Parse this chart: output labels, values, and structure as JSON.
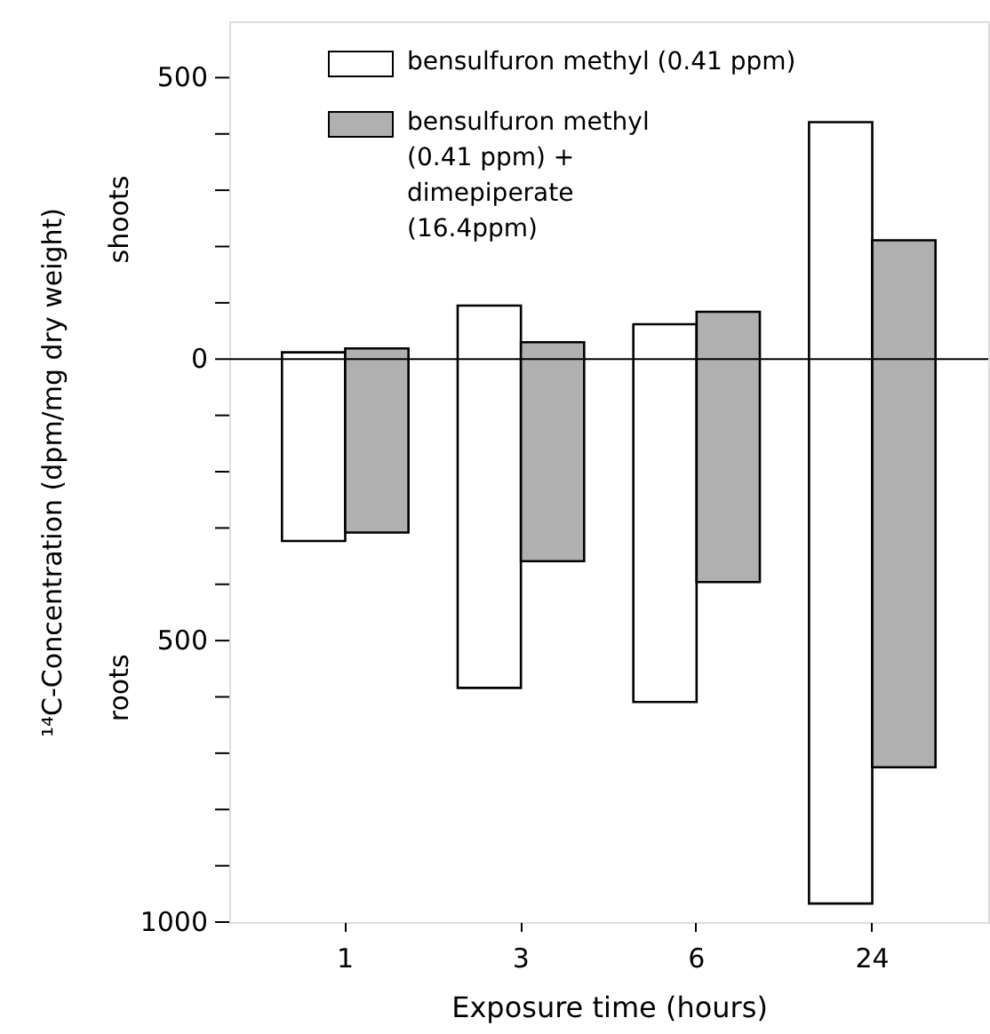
{
  "chart_data": {
    "type": "bar",
    "categories": [
      "1",
      "3",
      "6",
      "24"
    ],
    "series": [
      {
        "name": "bensulfuron methyl (0.41 ppm)",
        "color": "#ffffff",
        "base": [
          -323,
          -584,
          -609,
          -967
        ],
        "values": [
          335,
          679,
          671,
          1388
        ]
      },
      {
        "name": "bensulfuron methyl (0.41 ppm) + dimepiperate (16.4ppm)",
        "color": "#b0b0b0",
        "base": [
          -308,
          -359,
          -396,
          -725
        ],
        "values": [
          327,
          389,
          480,
          936
        ]
      }
    ],
    "xlabel": "Exposure time (hours)",
    "ylabel": "¹⁴C-Concentration (dpm/mg dry weight)",
    "annotations": [
      "shoots",
      "roots"
    ],
    "ylim": [
      -1000,
      600
    ],
    "yticks": [
      {
        "value": 500,
        "label": "500"
      },
      {
        "value": 400,
        "label": null
      },
      {
        "value": 300,
        "label": null
      },
      {
        "value": 200,
        "label": null
      },
      {
        "value": 100,
        "label": null
      },
      0,
      {
        "value": -100,
        "label": null
      },
      {
        "value": -200,
        "label": null
      },
      {
        "value": -300,
        "label": null
      },
      {
        "value": -400,
        "label": null
      },
      {
        "value": -500,
        "label": "500"
      },
      {
        "value": -600,
        "label": null
      },
      {
        "value": -700,
        "label": null
      },
      {
        "value": -800,
        "label": null
      },
      {
        "value": -900,
        "label": null
      },
      {
        "value": -1000,
        "label": "1000"
      }
    ],
    "ref_lines": [
      {
        "axis": "y",
        "value": 0
      }
    ],
    "grid": false,
    "legend": "top left"
  }
}
